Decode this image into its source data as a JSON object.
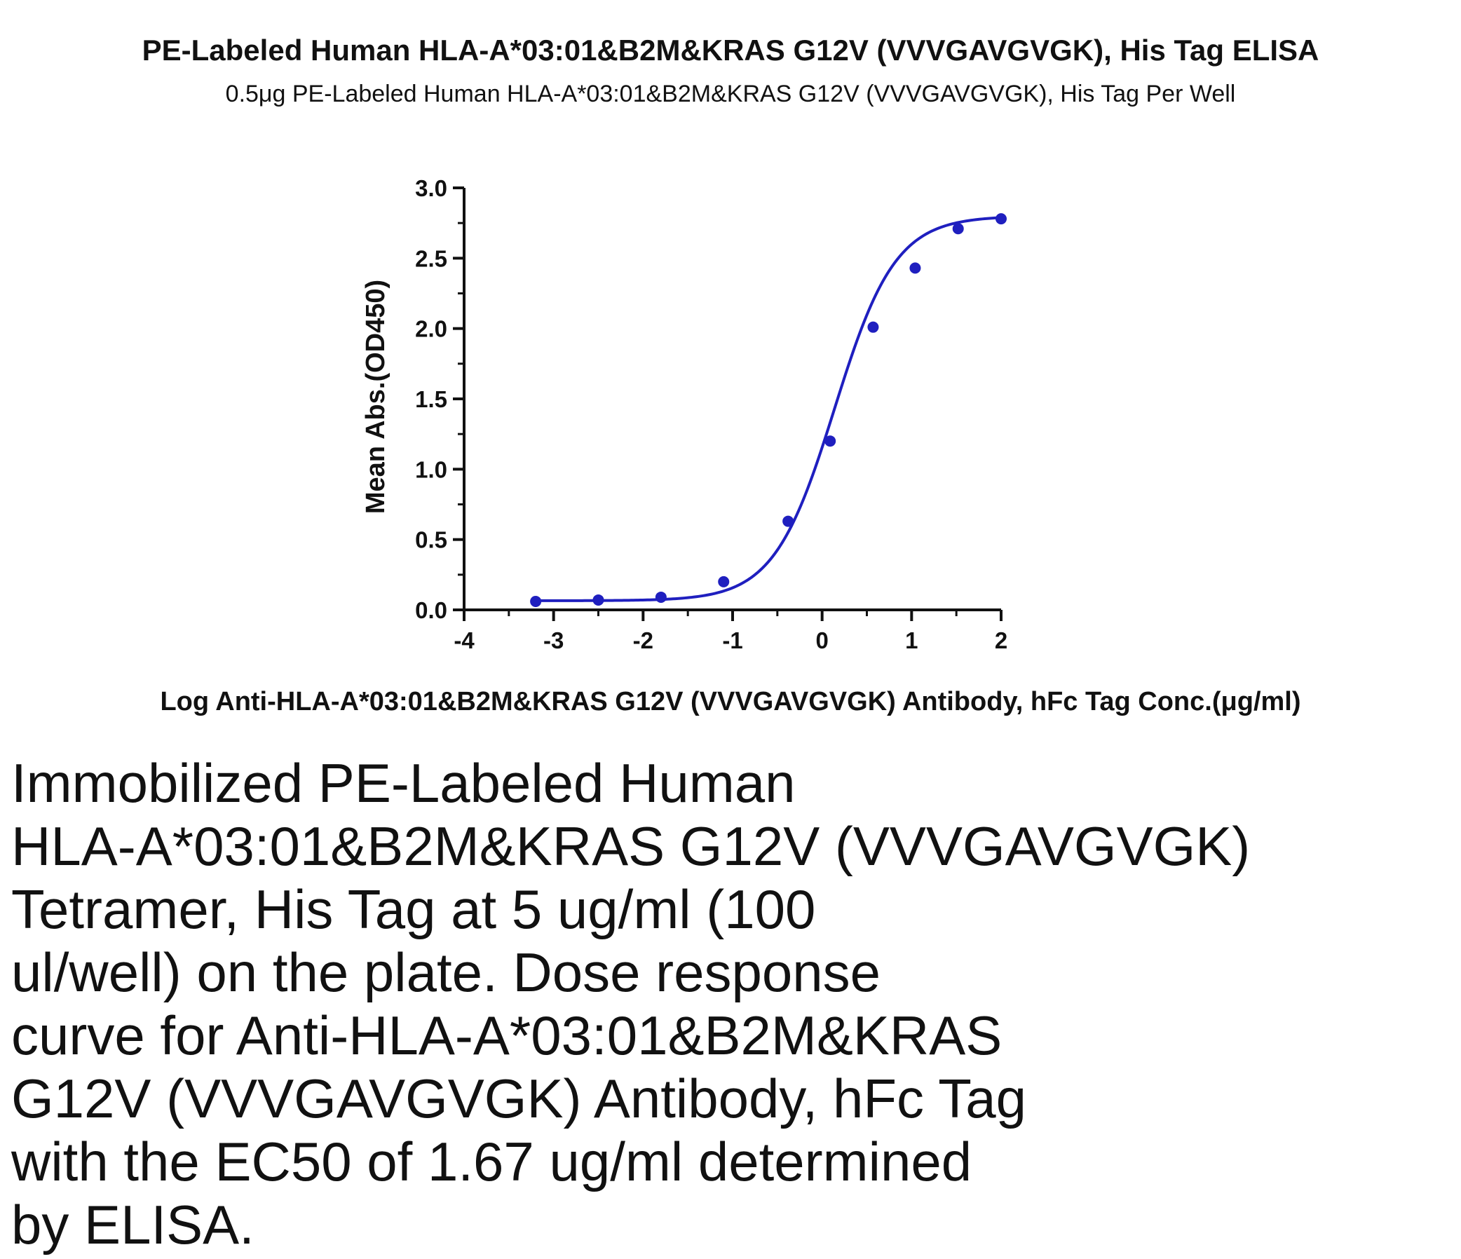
{
  "chart_data": {
    "type": "scatter",
    "title": "PE-Labeled Human HLA-A*03:01&B2M&KRAS G12V (VVVGAVGVGK), His Tag ELISA",
    "subtitle": "0.5μg PE-Labeled Human HLA-A*03:01&B2M&KRAS G12V (VVVGAVGVGK), His Tag Per Well",
    "xlabel": "Log Anti-HLA-A*03:01&B2M&KRAS G12V (VVVGAVGVGK) Antibody, hFc Tag Conc.(μg/ml)",
    "ylabel": "Mean Abs.(OD450)",
    "xlim": [
      -4,
      2
    ],
    "ylim": [
      0.0,
      3.0
    ],
    "x_ticks": [
      "-4",
      "-3",
      "-2",
      "-1",
      "0",
      "1",
      "2"
    ],
    "y_ticks": [
      "0.0",
      "0.5",
      "1.0",
      "1.5",
      "2.0",
      "2.5",
      "3.0"
    ],
    "grid": false,
    "fit_curve": "4-parameter logistic",
    "series": [
      {
        "x": [
          -3.2,
          -2.5,
          -1.8,
          -1.1,
          -0.38,
          0.09,
          0.57,
          1.04,
          1.52,
          2.0
        ],
        "y": [
          0.06,
          0.07,
          0.09,
          0.2,
          0.63,
          1.2,
          2.01,
          2.43,
          2.71,
          2.78
        ],
        "color": "#1f1fbf"
      }
    ]
  },
  "caption_lines": [
    "Immobilized PE-Labeled Human",
    "HLA-A*03:01&B2M&KRAS G12V (VVVGAVGVGK)",
    "Tetramer, His Tag at 5 ug/ml (100",
    "ul/well) on the plate. Dose response",
    "curve for Anti-HLA-A*03:01&B2M&KRAS",
    "G12V (VVVGAVGVGK) Antibody, hFc Tag",
    "with the EC50 of 1.67 ug/ml determined",
    "by ELISA."
  ]
}
